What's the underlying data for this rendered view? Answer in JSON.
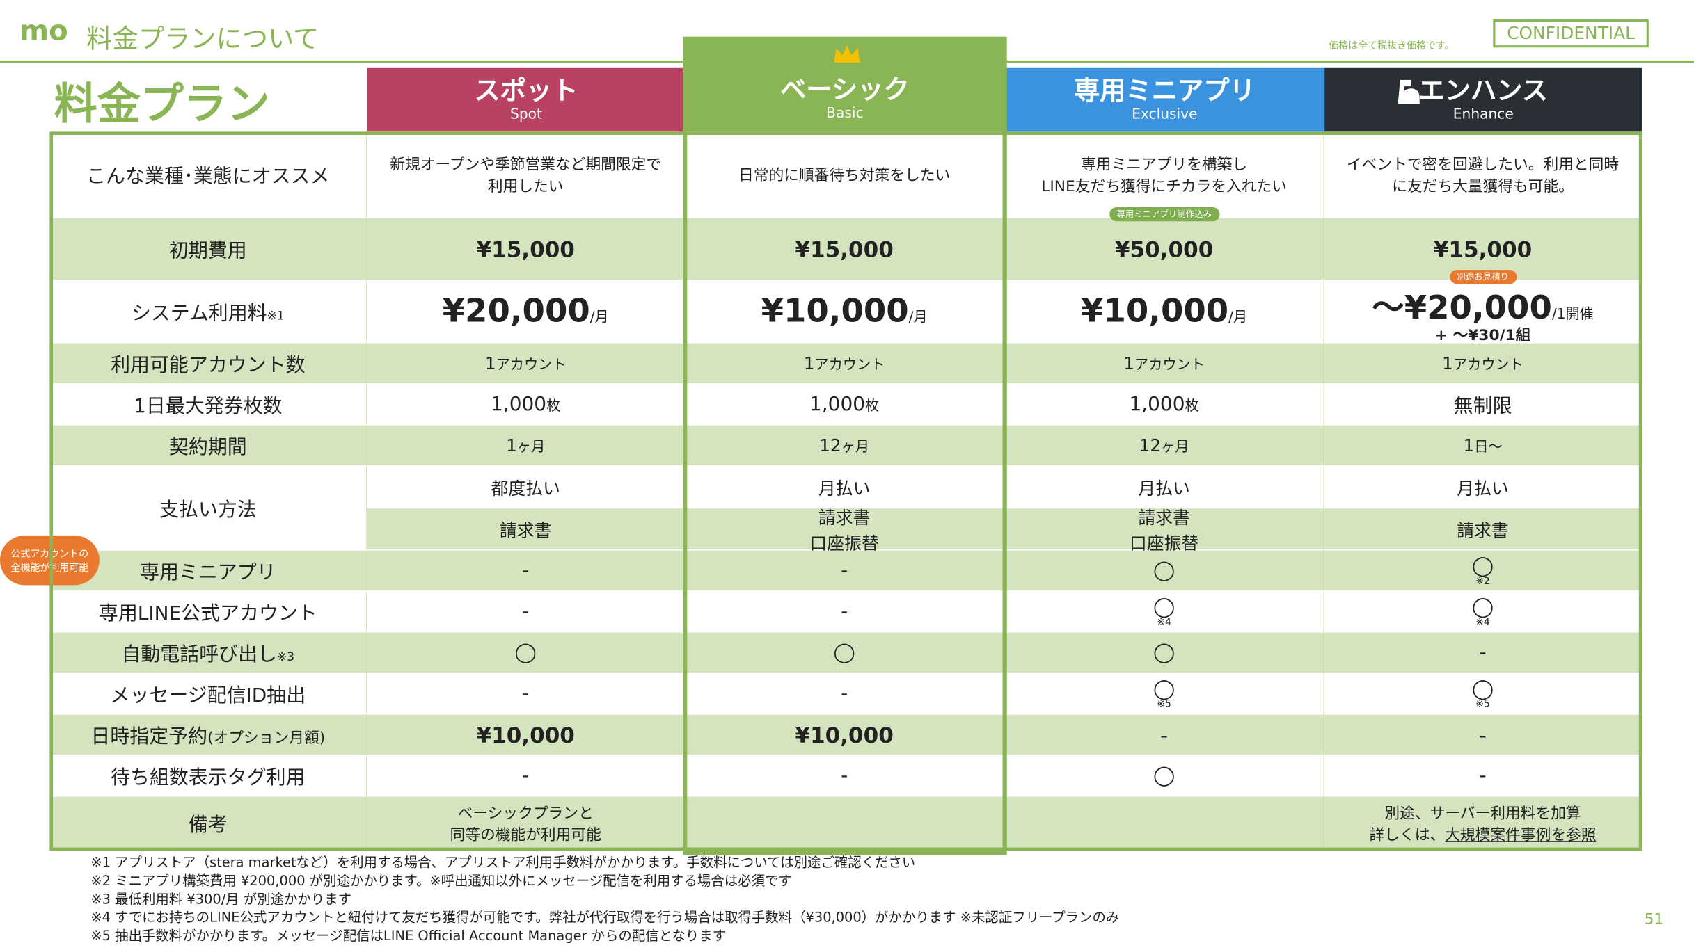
{
  "header": {
    "logo": "mo",
    "title": "料金プランについて",
    "note": "価格は全て税抜き価格です。",
    "confidential": "CONFIDENTIAL"
  },
  "heading": "料金プラン",
  "plans": [
    {
      "name": "スポット",
      "sub": "Spot"
    },
    {
      "name": "ベーシック",
      "sub": "Basic"
    },
    {
      "name": "専用ミニアプリ",
      "sub": "Exclusive"
    },
    {
      "name": "エンハンス",
      "sub": "Enhance"
    }
  ],
  "rows": [
    {
      "label": "こんな業種･業態にオススメ",
      "cells": [
        {
          "main": "新規オープンや季節営業など期間限定で\n利用したい"
        },
        {
          "main": "日常的に順番待ち対策をしたい"
        },
        {
          "main": "専用ミニアプリを構築し\nLINE友だち獲得にチカラを入れたい"
        },
        {
          "main": "イベントで密を回避したい。利用と同時\nに友だち大量獲得も可能。"
        }
      ]
    },
    {
      "label": "初期費用",
      "cells": [
        {
          "main": "¥15,000"
        },
        {
          "main": "¥15,000"
        },
        {
          "main": "¥50,000",
          "badge": "専用ミニアプリ制作込み"
        },
        {
          "main": "¥15,000"
        }
      ]
    },
    {
      "label": "システム利用料",
      "label_note": "※1",
      "cells": [
        {
          "main": "¥20,000",
          "unit": "/月"
        },
        {
          "main": "¥10,000",
          "unit": "/月"
        },
        {
          "main": "¥10,000",
          "unit": "/月"
        },
        {
          "main": "〜¥20,000",
          "unit": "/1開催",
          "extra": "+ 〜¥30/1組",
          "badge": "別途お見積り"
        }
      ]
    },
    {
      "label": "利用可能アカウント数",
      "cells": [
        {
          "main": "1",
          "unit": "アカウント"
        },
        {
          "main": "1",
          "unit": "アカウント"
        },
        {
          "main": "1",
          "unit": "アカウント"
        },
        {
          "main": "1",
          "unit": "アカウント"
        }
      ]
    },
    {
      "label": "1日最大発券枚数",
      "cells": [
        {
          "main": "1,000",
          "unit": "枚"
        },
        {
          "main": "1,000",
          "unit": "枚"
        },
        {
          "main": "1,000",
          "unit": "枚"
        },
        {
          "main": "無制限"
        }
      ]
    },
    {
      "label": "契約期間",
      "cells": [
        {
          "main": "1",
          "unit": "ヶ月"
        },
        {
          "main": "12",
          "unit": "ヶ月"
        },
        {
          "main": "12",
          "unit": "ヶ月"
        },
        {
          "main": "1",
          "unit": "日〜"
        }
      ]
    },
    {
      "label": "支払い方法",
      "cells": [
        {
          "main": "都度払い"
        },
        {
          "main": "月払い"
        },
        {
          "main": "月払い"
        },
        {
          "main": "月払い"
        }
      ],
      "cells2": [
        {
          "main": "請求書"
        },
        {
          "main": "請求書\n口座振替"
        },
        {
          "main": "請求書\n口座振替"
        },
        {
          "main": "請求書"
        }
      ]
    },
    {
      "label": "専用ミニアプリ",
      "label_badge": "公式アカウントの\n全機能が利用可能",
      "cells": [
        {
          "main": "-"
        },
        {
          "main": "-"
        },
        {
          "main": "◯"
        },
        {
          "main": "◯",
          "note": "※2"
        }
      ]
    },
    {
      "label": "専用LINE公式アカウント",
      "cells": [
        {
          "main": "-"
        },
        {
          "main": "-"
        },
        {
          "main": "◯",
          "note": "※4"
        },
        {
          "main": "◯",
          "note": "※4"
        }
      ]
    },
    {
      "label": "自動電話呼び出し",
      "label_note": "※3",
      "cells": [
        {
          "main": "◯"
        },
        {
          "main": "◯"
        },
        {
          "main": "◯"
        },
        {
          "main": "-"
        }
      ]
    },
    {
      "label": "メッセージ配信ID抽出",
      "cells": [
        {
          "main": "-"
        },
        {
          "main": "-"
        },
        {
          "main": "◯",
          "note": "※5"
        },
        {
          "main": "◯",
          "note": "※5"
        }
      ]
    },
    {
      "label": "日時指定予約",
      "label_note": "(オプション月額)",
      "cells": [
        {
          "main": "¥10,000"
        },
        {
          "main": "¥10,000"
        },
        {
          "main": "-"
        },
        {
          "main": "-"
        }
      ]
    },
    {
      "label": "待ち組数表示タグ利用",
      "cells": [
        {
          "main": "-"
        },
        {
          "main": "-"
        },
        {
          "main": "◯"
        },
        {
          "main": "-"
        }
      ]
    },
    {
      "label": "備考",
      "cells": [
        {
          "main": "ベーシックプランと\n同等の機能が利用可能"
        },
        null,
        null,
        {
          "main": "別途、サーバー利用料を加算\n詳しくは、",
          "link": "大規模案件事例を参照"
        }
      ]
    }
  ],
  "footnotes": [
    "※1 アプリストア（stera marketなど）を利用する場合、アプリストア利用手数料がかかります。手数料については別途ご確認ください",
    "※2 ミニアプリ構築費用 ¥200,000 が別途かかります。※呼出通知以外にメッセージ配信を利用する場合は必須です",
    "※3 最低利用料 ¥300/月 が別途かかります",
    "※4 すでにお持ちのLINE公式アカウントと紐付けて友だち獲得が可能です。弊社が代行取得を行う場合は取得手数料（¥30,000）がかかります ※未認証フリープランのみ",
    "※5 抽出手数料がかかります。メッセージ配信はLINE Official Account Manager からの配信となります"
  ],
  "page": "51"
}
